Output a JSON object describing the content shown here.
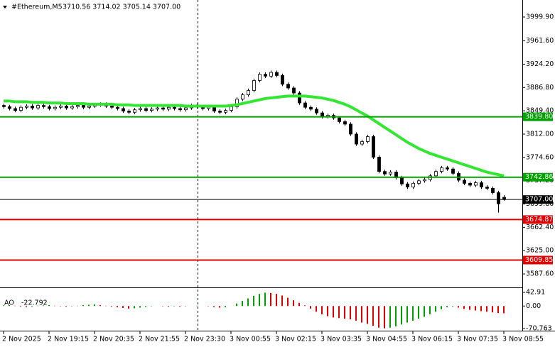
{
  "chart_data": {
    "type": "candlestick",
    "title": "#Ethereum,M5",
    "subtitle": "3710.56 3714.02 3705.14 3707.00",
    "categories": [
      "2 Nov 2025",
      null,
      null,
      null,
      null,
      null,
      null,
      null,
      "2 Nov 19:15",
      null,
      null,
      null,
      null,
      null,
      null,
      null,
      "2 Nov 20:35",
      null,
      null,
      null,
      null,
      null,
      null,
      null,
      "2 Nov 21:55",
      null,
      null,
      null,
      null,
      null,
      null,
      null,
      "2 Nov 23:30",
      null,
      null,
      null,
      null,
      null,
      null,
      null,
      "3 Nov 00:55",
      null,
      null,
      null,
      null,
      null,
      null,
      null,
      "3 Nov 02:15",
      null,
      null,
      null,
      null,
      null,
      null,
      null,
      "3 Nov 03:35",
      null,
      null,
      null,
      null,
      null,
      null,
      null,
      "3 Nov 04:55",
      null,
      null,
      null,
      null,
      null,
      null,
      null,
      "3 Nov 06:15",
      null,
      null,
      null,
      null,
      null,
      null,
      null,
      "3 Nov 07:35",
      null,
      null,
      null,
      null,
      null,
      null,
      null,
      "3 Nov 08:55"
    ],
    "candles": [
      [
        3858,
        3861,
        3853,
        3856
      ],
      [
        3856,
        3859,
        3850,
        3853
      ],
      [
        3853,
        3856,
        3847,
        3850
      ],
      [
        3850,
        3858,
        3847,
        3855
      ],
      [
        3855,
        3860,
        3852,
        3857
      ],
      [
        3857,
        3860,
        3851,
        3854
      ],
      [
        3854,
        3861,
        3851,
        3858
      ],
      [
        3858,
        3861,
        3853,
        3856
      ],
      [
        3856,
        3859,
        3850,
        3853
      ],
      [
        3853,
        3858,
        3850,
        3855
      ],
      [
        3855,
        3860,
        3852,
        3857
      ],
      [
        3857,
        3860,
        3851,
        3854
      ],
      [
        3854,
        3859,
        3851,
        3856
      ],
      [
        3856,
        3861,
        3853,
        3858
      ],
      [
        3858,
        3861,
        3852,
        3855
      ],
      [
        3855,
        3860,
        3852,
        3857
      ],
      [
        3857,
        3862,
        3854,
        3859
      ],
      [
        3859,
        3863,
        3856,
        3860
      ],
      [
        3860,
        3863,
        3854,
        3857
      ],
      [
        3857,
        3860,
        3852,
        3855
      ],
      [
        3855,
        3858,
        3850,
        3853
      ],
      [
        3853,
        3856,
        3846,
        3849
      ],
      [
        3849,
        3852,
        3844,
        3847
      ],
      [
        3847,
        3854,
        3844,
        3851
      ],
      [
        3851,
        3856,
        3848,
        3853
      ],
      [
        3853,
        3856,
        3847,
        3850
      ],
      [
        3850,
        3855,
        3847,
        3852
      ],
      [
        3852,
        3857,
        3849,
        3854
      ],
      [
        3854,
        3857,
        3849,
        3852
      ],
      [
        3852,
        3858,
        3849,
        3855
      ],
      [
        3855,
        3858,
        3850,
        3853
      ],
      [
        3853,
        3856,
        3848,
        3851
      ],
      [
        3851,
        3857,
        3848,
        3854
      ],
      [
        3854,
        3861,
        3851,
        3858
      ],
      [
        3858,
        3861,
        3853,
        3856
      ],
      [
        3856,
        3859,
        3850,
        3853
      ],
      [
        3853,
        3858,
        3850,
        3855
      ],
      [
        3855,
        3858,
        3846,
        3849
      ],
      [
        3849,
        3852,
        3844,
        3847
      ],
      [
        3847,
        3853,
        3844,
        3850
      ],
      [
        3850,
        3859,
        3847,
        3856
      ],
      [
        3856,
        3871,
        3853,
        3868
      ],
      [
        3868,
        3878,
        3865,
        3875
      ],
      [
        3875,
        3885,
        3872,
        3882
      ],
      [
        3882,
        3901,
        3879,
        3898
      ],
      [
        3898,
        3911,
        3895,
        3908
      ],
      [
        3908,
        3911,
        3902,
        3905
      ],
      [
        3905,
        3914,
        3902,
        3911
      ],
      [
        3911,
        3914,
        3903,
        3906
      ],
      [
        3906,
        3909,
        3889,
        3892
      ],
      [
        3892,
        3895,
        3883,
        3886
      ],
      [
        3886,
        3889,
        3875,
        3878
      ],
      [
        3878,
        3881,
        3859,
        3862
      ],
      [
        3862,
        3865,
        3852,
        3855
      ],
      [
        3855,
        3858,
        3849,
        3852
      ],
      [
        3852,
        3855,
        3843,
        3846
      ],
      [
        3846,
        3849,
        3837,
        3840
      ],
      [
        3840,
        3845,
        3837,
        3842
      ],
      [
        3842,
        3845,
        3835,
        3838
      ],
      [
        3838,
        3841,
        3829,
        3832
      ],
      [
        3832,
        3835,
        3825,
        3828
      ],
      [
        3828,
        3831,
        3809,
        3812
      ],
      [
        3812,
        3815,
        3793,
        3796
      ],
      [
        3796,
        3803,
        3793,
        3800
      ],
      [
        3800,
        3811,
        3797,
        3808
      ],
      [
        3808,
        3811,
        3772,
        3775
      ],
      [
        3775,
        3778,
        3749,
        3752
      ],
      [
        3752,
        3755,
        3745,
        3748
      ],
      [
        3748,
        3754,
        3745,
        3751
      ],
      [
        3751,
        3754,
        3739,
        3742
      ],
      [
        3742,
        3745,
        3729,
        3732
      ],
      [
        3732,
        3735,
        3724,
        3727
      ],
      [
        3727,
        3736,
        3724,
        3733
      ],
      [
        3733,
        3740,
        3730,
        3737
      ],
      [
        3737,
        3742,
        3734,
        3739
      ],
      [
        3739,
        3748,
        3736,
        3745
      ],
      [
        3745,
        3755,
        3742,
        3752
      ],
      [
        3752,
        3761,
        3749,
        3758
      ],
      [
        3758,
        3761,
        3753,
        3756
      ],
      [
        3756,
        3759,
        3746,
        3749
      ],
      [
        3749,
        3752,
        3735,
        3738
      ],
      [
        3738,
        3741,
        3730,
        3733
      ],
      [
        3733,
        3736,
        3727,
        3730
      ],
      [
        3730,
        3737,
        3727,
        3734
      ],
      [
        3734,
        3737,
        3724,
        3727
      ],
      [
        3727,
        3730,
        3722,
        3725
      ],
      [
        3725,
        3728,
        3715,
        3718
      ],
      [
        3718,
        3721,
        3686,
        3700
      ],
      [
        3710.56,
        3714.02,
        3705.14,
        3707
      ]
    ],
    "ma": {
      "color": "#33e633",
      "values": [
        3865,
        3865,
        3864,
        3864,
        3864,
        3863,
        3863,
        3863,
        3862,
        3862,
        3862,
        3861,
        3861,
        3861,
        3861,
        3860,
        3860,
        3860,
        3860,
        3860,
        3859,
        3859,
        3859,
        3858,
        3858,
        3858,
        3858,
        3858,
        3858,
        3858,
        3858,
        3858,
        3857,
        3857,
        3857,
        3857,
        3857,
        3857,
        3857,
        3857,
        3858,
        3859,
        3861,
        3863,
        3865,
        3867,
        3869,
        3870,
        3871,
        3872,
        3873,
        3873,
        3873,
        3873,
        3872,
        3871,
        3870,
        3868,
        3866,
        3863,
        3860,
        3856,
        3851,
        3846,
        3841,
        3835,
        3829,
        3823,
        3817,
        3811,
        3805,
        3799,
        3794,
        3789,
        3785,
        3781,
        3778,
        3775,
        3772,
        3769,
        3766,
        3763,
        3760,
        3757,
        3754,
        3751,
        3749,
        3747,
        3745
      ]
    },
    "ylim": [
      3566,
      4027.2
    ],
    "yticks": [
      {
        "value": 3999.9,
        "label": "3999.90"
      },
      {
        "value": 3961.6,
        "label": "3961.60"
      },
      {
        "value": 3924.2,
        "label": "3924.20"
      },
      {
        "value": 3886.8,
        "label": "3886.80"
      },
      {
        "value": 3849.4,
        "label": "3849.40"
      },
      {
        "value": 3812,
        "label": "3812.00"
      },
      {
        "value": 3774.6,
        "label": "3774.60"
      },
      {
        "value": 3737.2,
        "label": "3737.20"
      },
      {
        "value": 3699.8,
        "label": "3699.80"
      },
      {
        "value": 3662.4,
        "label": "3662.40"
      },
      {
        "value": 3625,
        "label": "3625.00"
      },
      {
        "value": 3587.6,
        "label": "3587.60"
      }
    ],
    "levels": [
      {
        "value": 3839.8,
        "label": "3839.80",
        "color": "#00a000"
      },
      {
        "value": 3742.86,
        "label": "3742.86",
        "color": "#00a000"
      },
      {
        "value": 3674.87,
        "label": "3674.87",
        "color": "#e00000"
      },
      {
        "value": 3609.85,
        "label": "3609.85",
        "color": "#e00000"
      }
    ],
    "current_price": {
      "value": 3707,
      "label": "3707.00",
      "color": "#000000"
    },
    "ao": {
      "name": "AO",
      "value_label": "-22.792",
      "up_color": "#00a000",
      "down_color": "#e00000",
      "values": [
        2,
        3,
        1,
        -2,
        -3,
        -2,
        1,
        2,
        3,
        1,
        -1,
        -2,
        -1,
        1,
        3,
        4,
        5,
        3,
        1,
        -2,
        -4,
        -6,
        -8,
        -7,
        -5,
        -3,
        -1,
        0,
        -1,
        -2,
        -1,
        -2,
        -1,
        0,
        1,
        0,
        -1,
        -3,
        -5,
        -4,
        0,
        8,
        16,
        24,
        32,
        38,
        42,
        41,
        38,
        33,
        26,
        18,
        10,
        2,
        -8,
        -18,
        -26,
        -32,
        -36,
        -38,
        -40,
        -42,
        -46,
        -52,
        -56,
        -62,
        -68,
        -70,
        -68,
        -64,
        -58,
        -52,
        -46,
        -40,
        -34,
        -26,
        -18,
        -10,
        -4,
        -2,
        -5,
        -9,
        -12,
        -14,
        -16,
        -18,
        -20,
        -22,
        -22.792
      ],
      "ylim": [
        -70.763,
        42.91
      ],
      "yticks": [
        {
          "value": 42.91,
          "label": "42.91"
        },
        {
          "value": 0,
          "label": "0.00"
        },
        {
          "value": -70.763,
          "label": "-70.763"
        }
      ]
    }
  }
}
